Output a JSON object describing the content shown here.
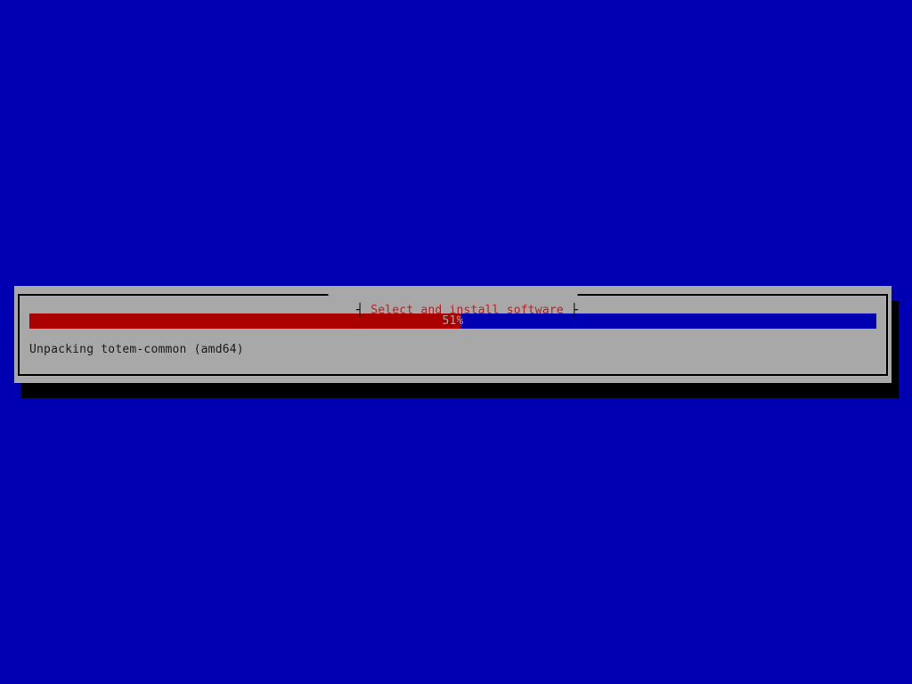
{
  "colors": {
    "background_blue": "#0000b2",
    "dialog_gray": "#a8a8a8",
    "title_red": "#b52020",
    "progress_red": "#aa0000",
    "progress_track_blue": "#0000b2",
    "progress_text_gray": "#a8a8a8",
    "status_text_color": "#1a1a1a",
    "shadow_black": "#000000",
    "border_black": "#000000"
  },
  "dialog": {
    "title": "Select and install software",
    "title_left_tick": "┤",
    "title_right_tick": "├"
  },
  "progress": {
    "percent": 51,
    "label": "51%"
  },
  "status": {
    "message": "Unpacking totem-common (amd64)"
  }
}
